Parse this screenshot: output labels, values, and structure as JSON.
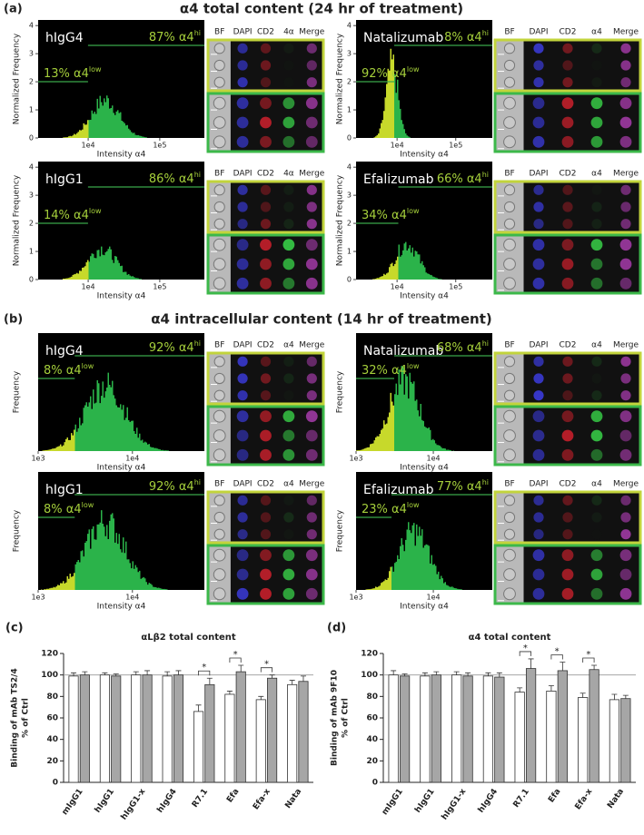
{
  "panel_a": {
    "panel": "(a)",
    "title": "α4 total content (24 hr of treatment)",
    "ylabel": "Normalized Frequency",
    "xlabel": "Intensity α4",
    "xlim": [
      2000,
      420000
    ],
    "log_x": true,
    "xticks": [
      {
        "value": 10000,
        "label": "1e4"
      },
      {
        "value": 100000,
        "label": "1e5"
      }
    ],
    "ylim": [
      0,
      4.2
    ],
    "yticks": [
      0,
      1,
      2,
      3,
      4
    ],
    "plots": [
      {
        "name": "hIgG4",
        "hi": "87% α4",
        "hi_sup": "hi",
        "low": "13% α4",
        "low_sup": "low",
        "channels": [
          "BF",
          "DAPI",
          "CD2",
          "4α",
          "Merge"
        ]
      },
      {
        "name": "Natalizumab",
        "hi": "8% α4",
        "hi_sup": "hi",
        "low": "92% α4",
        "low_sup": "low",
        "channels": [
          "BF",
          "DAPI",
          "CD2",
          "α4",
          "Merge"
        ]
      },
      {
        "name": "hIgG1",
        "hi": "86% α4",
        "hi_sup": "hi",
        "low": "14% α4",
        "low_sup": "low",
        "channels": [
          "BF",
          "DAPI",
          "CD2",
          "4α",
          "Merge"
        ]
      },
      {
        "name": "Efalizumab",
        "hi": "66% α4",
        "hi_sup": "hi",
        "low": "34% α4",
        "low_sup": "low",
        "channels": [
          "BF",
          "DAPI",
          "CD2",
          "α4",
          "Merge"
        ]
      }
    ]
  },
  "panel_b": {
    "panel": "(b)",
    "title": "α4 intracellular content (14 hr of treatment)",
    "ylabel": "Frequency",
    "xlabel": "Intensity α4",
    "xlim": [
      1000,
      58000
    ],
    "log_x": true,
    "xticks": [
      {
        "value": 1000,
        "label": "1e3"
      },
      {
        "value": 10000,
        "label": "1e4"
      }
    ],
    "plots": [
      {
        "name": "hIgG4",
        "hi": "92% α4",
        "hi_sup": "hi",
        "low": "8% α4",
        "low_sup": "low",
        "channels": [
          "BF",
          "DAPI",
          "CD2",
          "α4",
          "Merge"
        ]
      },
      {
        "name": "Natalizumab",
        "hi": "68% α4",
        "hi_sup": "hi",
        "low": "32% α4",
        "low_sup": "low",
        "channels": [
          "BF",
          "DAPI",
          "CD2",
          "α4",
          "Merge"
        ]
      },
      {
        "name": "hIgG1",
        "hi": "92% α4",
        "hi_sup": "hi",
        "low": "8% α4",
        "low_sup": "low",
        "channels": [
          "BF",
          "DAPI",
          "CD2",
          "α4",
          "Merge"
        ]
      },
      {
        "name": "Efalizumab",
        "hi": "77% α4",
        "hi_sup": "hi",
        "low": "23% α4",
        "low_sup": "low",
        "channels": [
          "BF",
          "DAPI",
          "CD2",
          "α4",
          "Merge"
        ]
      }
    ]
  },
  "chart_data": [
    {
      "type": "bar",
      "panel": "(c)",
      "title": "αLβ2 total content",
      "ylabel": [
        "Binding of mAb TS2/4",
        "% of Ctrl"
      ],
      "categories": [
        "mIgG1",
        "hIgG1",
        "hIgG1-x",
        "hIgG4",
        "R7.1",
        "Efa",
        "Efa-x",
        "Nata"
      ],
      "ylim": [
        0,
        120
      ],
      "yticks": [
        0,
        20,
        40,
        60,
        80,
        100,
        120
      ],
      "hline": 100,
      "series": [
        {
          "color": "#ffffff",
          "values": [
            99,
            100,
            100,
            99,
            66,
            82,
            77,
            91
          ],
          "errors": [
            3,
            2,
            3,
            4,
            6,
            3,
            3,
            4
          ]
        },
        {
          "color": "#a6a6a6",
          "values": [
            100,
            99,
            100,
            100,
            91,
            103,
            97,
            94
          ],
          "errors": [
            3,
            2,
            4,
            4,
            6,
            6,
            3,
            5
          ]
        }
      ],
      "significance": [
        null,
        null,
        null,
        null,
        "*",
        "*",
        "*",
        null
      ]
    },
    {
      "type": "bar",
      "panel": "(d)",
      "title": "α4 total content",
      "ylabel": [
        "Binding of mAb 9F10",
        "% of Ctrl"
      ],
      "categories": [
        "mIgG1",
        "hIgG1",
        "hIgG1-x",
        "hIgG4",
        "R7.1",
        "Efa",
        "Efa-x",
        "Nata"
      ],
      "ylim": [
        0,
        120
      ],
      "yticks": [
        0,
        20,
        40,
        60,
        80,
        100,
        120
      ],
      "hline": 100,
      "series": [
        {
          "color": "#ffffff",
          "values": [
            100,
            99,
            100,
            99,
            84,
            85,
            79,
            77
          ],
          "errors": [
            4,
            3,
            3,
            3,
            4,
            5,
            4,
            5
          ]
        },
        {
          "color": "#a6a6a6",
          "values": [
            99,
            100,
            99,
            98,
            106,
            104,
            105,
            78
          ],
          "errors": [
            2,
            3,
            3,
            4,
            9,
            8,
            4,
            3
          ]
        }
      ],
      "significance": [
        null,
        null,
        null,
        null,
        "*",
        "*",
        "*",
        null
      ]
    }
  ]
}
